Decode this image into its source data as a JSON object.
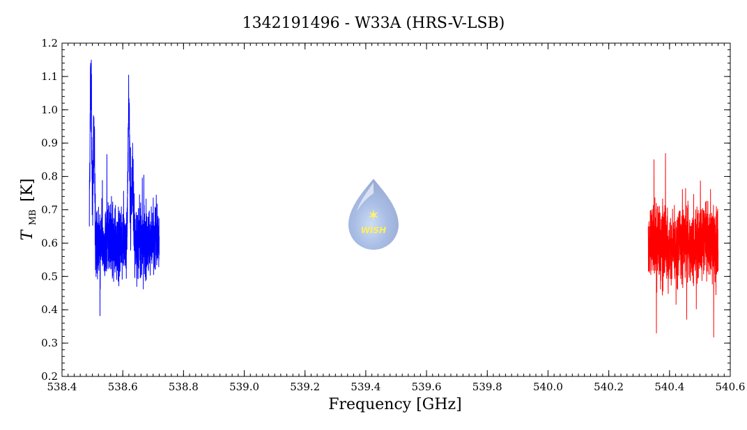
{
  "chart_data": {
    "type": "line",
    "title": "1342191496 - W33A (HRS-V-LSB)",
    "xlabel": "Frequency [GHz]",
    "ylabel_main": "T",
    "ylabel_sub": "MB",
    "ylabel_unit": "[K]",
    "xlim": [
      538.4,
      540.6
    ],
    "ylim": [
      0.2,
      1.2
    ],
    "x_ticks": [
      "538.4",
      "538.6",
      "538.8",
      "539.0",
      "539.2",
      "539.4",
      "539.6",
      "539.8",
      "540.0",
      "540.2",
      "540.4",
      "540.6"
    ],
    "y_ticks": [
      "0.2",
      "0.3",
      "0.4",
      "0.5",
      "0.6",
      "0.7",
      "0.8",
      "0.9",
      "1.0",
      "1.1",
      "1.2"
    ],
    "grid": false,
    "logo_text": "WISH",
    "series": [
      {
        "color": "#0000ff",
        "baseline": 0.6,
        "x_range": [
          538.49,
          538.72
        ],
        "y_range": [
          0.3,
          1.16
        ],
        "peaks": [
          {
            "x": 538.495,
            "y": 1.16
          },
          {
            "x": 538.505,
            "y": 0.95
          },
          {
            "x": 538.62,
            "y": 1.08
          },
          {
            "x": 538.632,
            "y": 0.85
          }
        ]
      },
      {
        "color": "#ff0000",
        "baseline": 0.6,
        "x_range": [
          540.33,
          540.56
        ],
        "y_range": [
          0.31,
          0.87
        ],
        "peaks": []
      }
    ]
  }
}
